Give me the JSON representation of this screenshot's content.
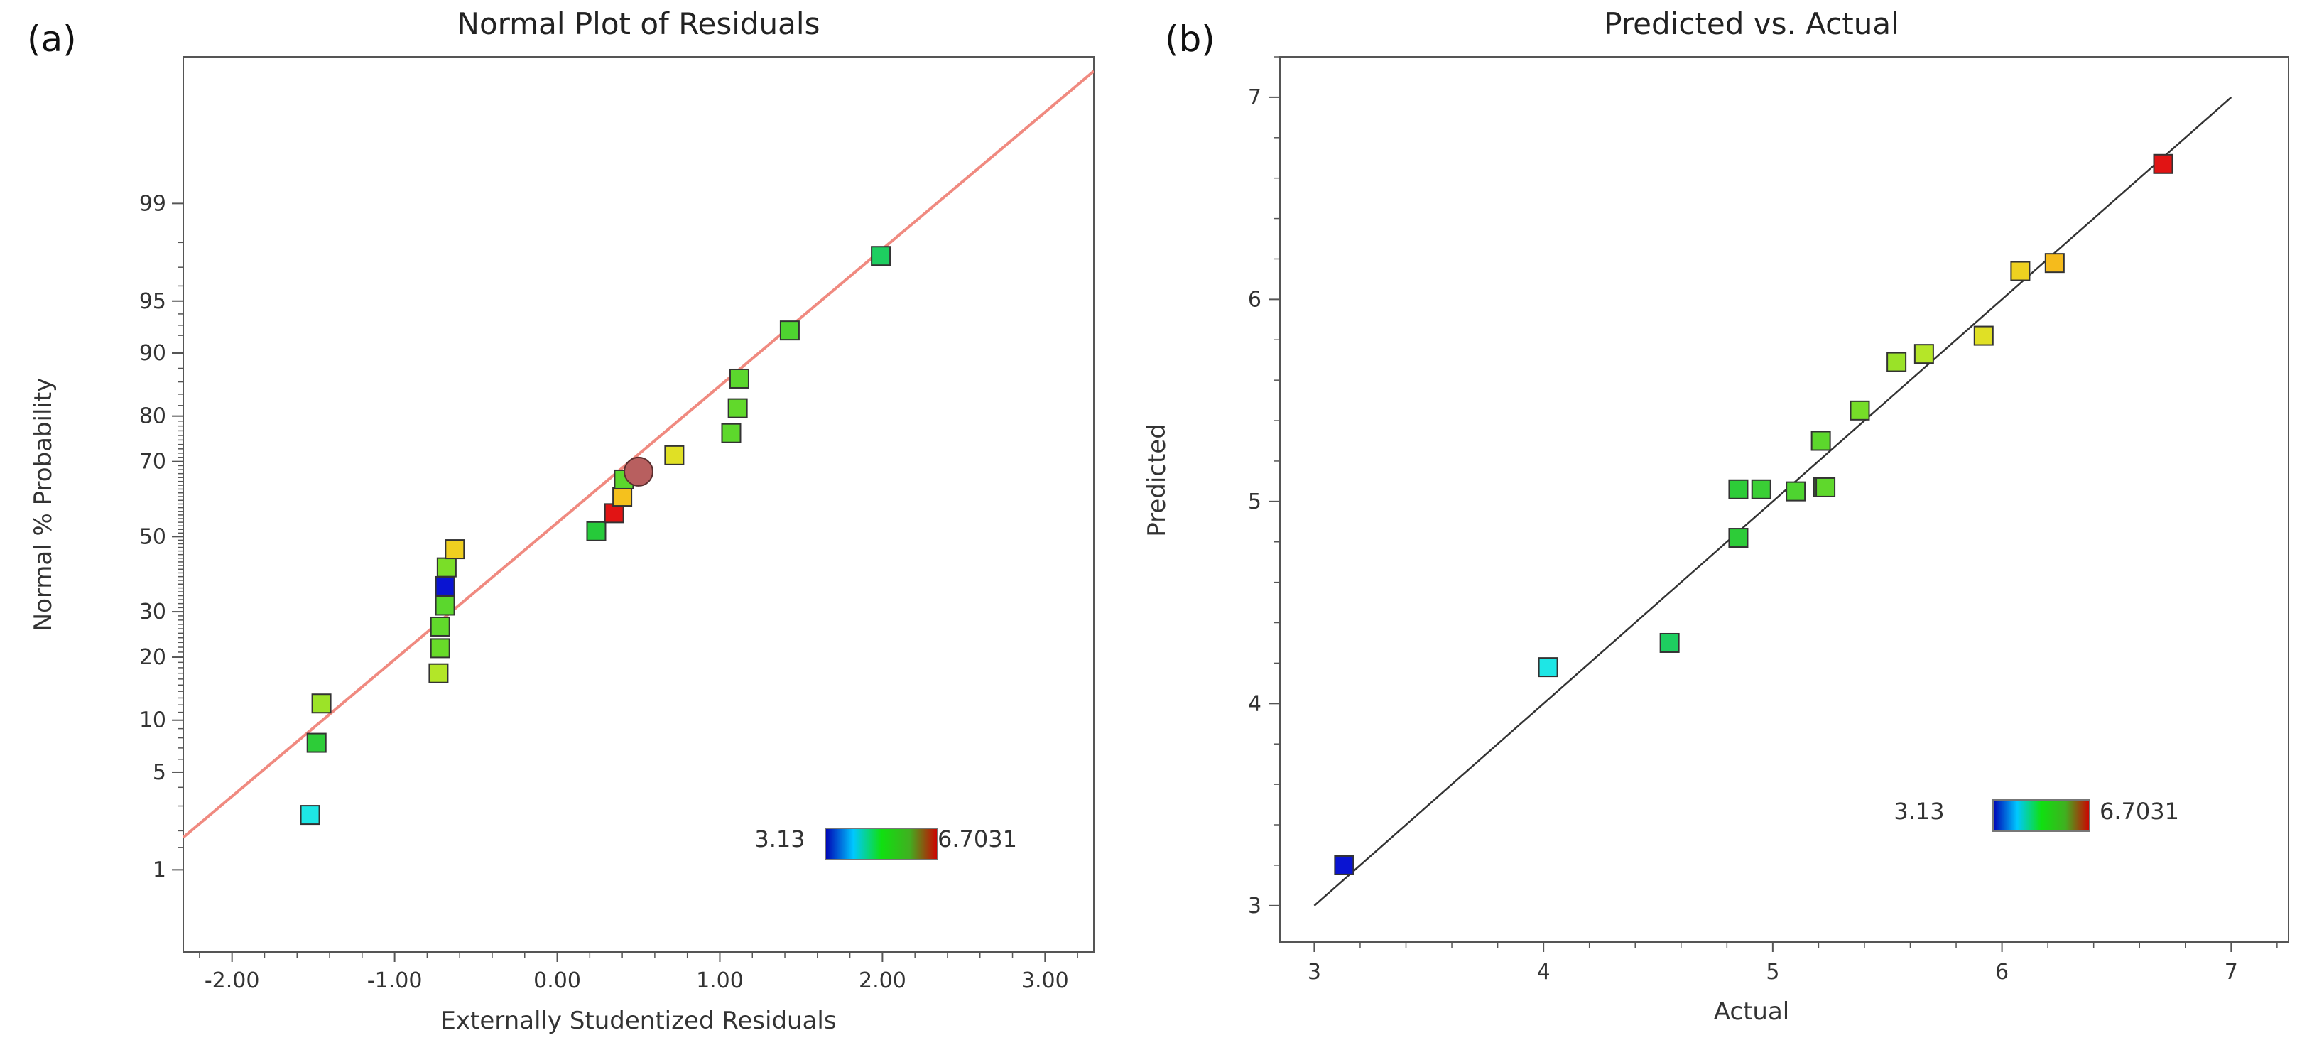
{
  "chart_data": [
    {
      "panel_label": "(a)",
      "type": "scatter",
      "title": "Normal Plot of Residuals",
      "xlabel": "Externally Studentized Residuals",
      "ylabel": "Normal % Probability",
      "xlim": [
        -2.3,
        3.3
      ],
      "y_scale": "normal-probability",
      "x_ticks": [
        -2.0,
        -1.0,
        0.0,
        1.0,
        2.0,
        3.0
      ],
      "x_tick_labels": [
        "-2.00",
        "-1.00",
        "0.00",
        "1.00",
        "2.00",
        "3.00"
      ],
      "y_ticks": [
        1,
        5,
        10,
        20,
        30,
        50,
        70,
        80,
        90,
        95,
        99
      ],
      "y_tick_labels": [
        "1",
        "5",
        "10",
        "20",
        "30",
        "50",
        "70",
        "80",
        "90",
        "95",
        "99"
      ],
      "grid": false,
      "reference_line": {
        "x": [
          -2.3,
          3.3
        ],
        "y_z": [
          -2.1,
          3.25
        ],
        "color": "#f08a80"
      },
      "highlight_point": {
        "x": 0.5,
        "y": 67.5,
        "color": "#b85f5f"
      },
      "points": [
        {
          "x": -1.52,
          "y": 2.6,
          "value": 3.85
        },
        {
          "x": -1.48,
          "y": 7.5,
          "value": 4.85
        },
        {
          "x": -1.45,
          "y": 12.2,
          "value": 5.55
        },
        {
          "x": -0.73,
          "y": 17.0,
          "value": 5.65
        },
        {
          "x": -0.72,
          "y": 21.8,
          "value": 5.3
        },
        {
          "x": -0.72,
          "y": 26.5,
          "value": 5.25
        },
        {
          "x": -0.69,
          "y": 31.5,
          "value": 5.2
        },
        {
          "x": -0.69,
          "y": 36.5,
          "value": 3.13
        },
        {
          "x": -0.68,
          "y": 41.5,
          "value": 5.4
        },
        {
          "x": -0.63,
          "y": 46.5,
          "value": 6.1
        },
        {
          "x": 0.24,
          "y": 51.5,
          "value": 4.8
        },
        {
          "x": 0.35,
          "y": 56.5,
          "value": 6.7031
        },
        {
          "x": 0.4,
          "y": 61.0,
          "value": 6.2
        },
        {
          "x": 0.41,
          "y": 65.5,
          "value": 5.2
        },
        {
          "x": 0.72,
          "y": 71.5,
          "value": 5.92
        },
        {
          "x": 1.07,
          "y": 76.5,
          "value": 5.22
        },
        {
          "x": 1.11,
          "y": 81.5,
          "value": 5.25
        },
        {
          "x": 1.12,
          "y": 86.5,
          "value": 5.2
        },
        {
          "x": 1.43,
          "y": 92.5,
          "value": 5.1
        },
        {
          "x": 1.99,
          "y": 97.5,
          "value": 4.55
        }
      ],
      "color_scale": {
        "min_label": "3.13",
        "max_label": "6.7031",
        "min": 3.13,
        "max": 6.7031,
        "min_color": "#4d4dd6",
        "max_color": "#e0483a"
      }
    },
    {
      "panel_label": "(b)",
      "type": "scatter",
      "title": "Predicted vs. Actual",
      "xlabel": "Actual",
      "ylabel": "Predicted",
      "xlim": [
        2.85,
        7.25
      ],
      "ylim": [
        2.82,
        7.2
      ],
      "x_ticks": [
        3,
        4,
        5,
        6,
        7
      ],
      "x_tick_labels": [
        "3",
        "4",
        "5",
        "6",
        "7"
      ],
      "y_ticks": [
        3,
        4,
        5,
        6,
        7
      ],
      "y_tick_labels": [
        "3",
        "4",
        "5",
        "6",
        "7"
      ],
      "grid": false,
      "reference_line": {
        "x": [
          3.0,
          7.0
        ],
        "y": [
          3.0,
          7.0
        ],
        "color": "#333333"
      },
      "points": [
        {
          "x": 3.13,
          "y": 3.2,
          "value": 3.13
        },
        {
          "x": 4.02,
          "y": 4.18,
          "value": 3.85
        },
        {
          "x": 4.55,
          "y": 4.3,
          "value": 4.55
        },
        {
          "x": 4.85,
          "y": 4.82,
          "value": 4.85
        },
        {
          "x": 4.85,
          "y": 5.06,
          "value": 4.85
        },
        {
          "x": 4.95,
          "y": 5.06,
          "value": 4.95
        },
        {
          "x": 5.1,
          "y": 5.05,
          "value": 5.1
        },
        {
          "x": 5.22,
          "y": 5.07,
          "value": 5.22
        },
        {
          "x": 5.23,
          "y": 5.07,
          "value": 5.23
        },
        {
          "x": 5.21,
          "y": 5.3,
          "value": 5.21
        },
        {
          "x": 5.38,
          "y": 5.45,
          "value": 5.38
        },
        {
          "x": 5.54,
          "y": 5.69,
          "value": 5.54
        },
        {
          "x": 5.66,
          "y": 5.73,
          "value": 5.66
        },
        {
          "x": 5.92,
          "y": 5.82,
          "value": 5.92
        },
        {
          "x": 6.08,
          "y": 6.14,
          "value": 6.08
        },
        {
          "x": 6.23,
          "y": 6.18,
          "value": 6.23
        },
        {
          "x": 6.7031,
          "y": 6.67,
          "value": 6.7031
        }
      ],
      "color_scale": {
        "min_label": "3.13",
        "max_label": "6.7031",
        "min": 3.13,
        "max": 6.7031,
        "min_color": "#4d4dd6",
        "max_color": "#e0483a"
      }
    }
  ]
}
